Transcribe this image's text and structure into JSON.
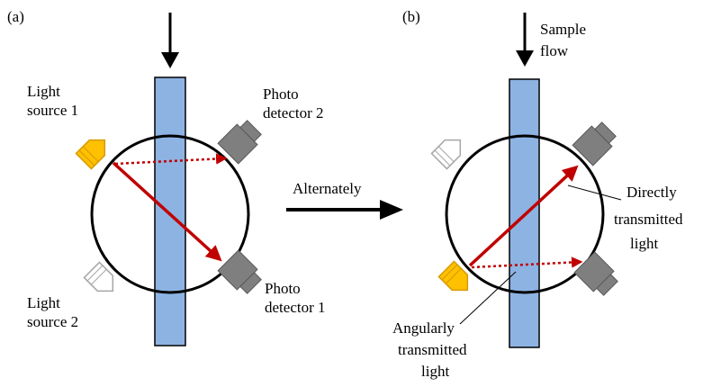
{
  "panel_a": {
    "tag": "(a)",
    "light_source_1": [
      "Light",
      "source 1"
    ],
    "light_source_2": [
      "Light",
      "source 2"
    ],
    "photo_detector_2": [
      "Photo",
      "detector 2"
    ],
    "photo_detector_1": [
      "Photo",
      "detector 1"
    ]
  },
  "middle": {
    "alternately": "Alternately"
  },
  "panel_b": {
    "tag": "(b)",
    "sample_flow": [
      "Sample",
      "flow"
    ],
    "directly_transmitted": [
      "Directly",
      "transmitted",
      "light"
    ],
    "angularly_transmitted": [
      "Angularly",
      "transmitted",
      "light"
    ]
  },
  "colors": {
    "flow_cell": "#8db3e2",
    "active_source": "#ffc000",
    "inactive_source": "#ffffff",
    "detector": "#7f7f7f",
    "beam": "#c00000"
  }
}
